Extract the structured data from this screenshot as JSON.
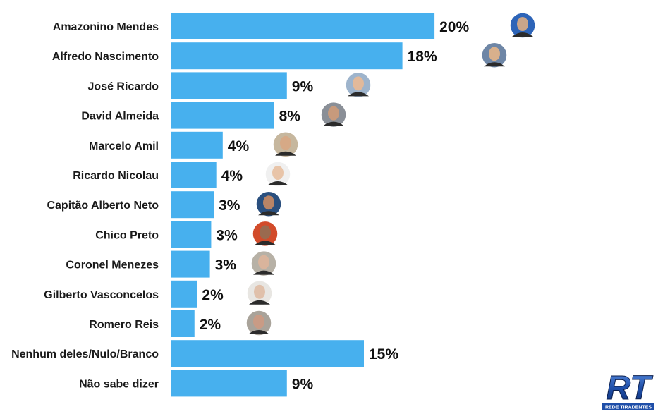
{
  "chart_data": {
    "type": "bar",
    "orientation": "horizontal",
    "categories": [
      "Amazonino Mendes",
      "Alfredo Nascimento",
      "José Ricardo",
      "David Almeida",
      "Marcelo Amil",
      "Ricardo Nicolau",
      "Capitão Alberto Neto",
      "Chico Preto",
      "Coronel Menezes",
      "Gilberto Vasconcelos",
      "Romero Reis",
      "Nenhum deles/Nulo/Branco",
      "Não sabe dizer"
    ],
    "values": [
      20.5,
      18,
      9,
      8,
      4,
      3.5,
      3.3,
      3.1,
      3,
      2,
      1.8,
      15,
      9
    ],
    "value_labels": [
      "20%",
      "18%",
      "9%",
      "8%",
      "4%",
      "4%",
      "3%",
      "3%",
      "3%",
      "2%",
      "2%",
      "15%",
      "9%"
    ],
    "xlim": [
      0,
      21
    ],
    "grid": false,
    "bar_color": "#47b0ee",
    "title": "",
    "xlabel": "",
    "ylabel": ""
  },
  "photo_icons": [
    "amazonino-photo-icon",
    "alfredo-photo-icon",
    "jose-ricardo-photo-icon",
    "david-photo-icon",
    "marcelo-photo-icon",
    "ricardo-nicolau-photo-icon",
    "alberto-neto-photo-icon",
    "chico-preto-photo-icon",
    "coronel-menezes-photo-icon",
    "gilberto-photo-icon",
    "romero-photo-icon"
  ],
  "logo": {
    "text": "RT",
    "subtext": "REDE TIRADENTES",
    "color": "#1e4ea8"
  }
}
